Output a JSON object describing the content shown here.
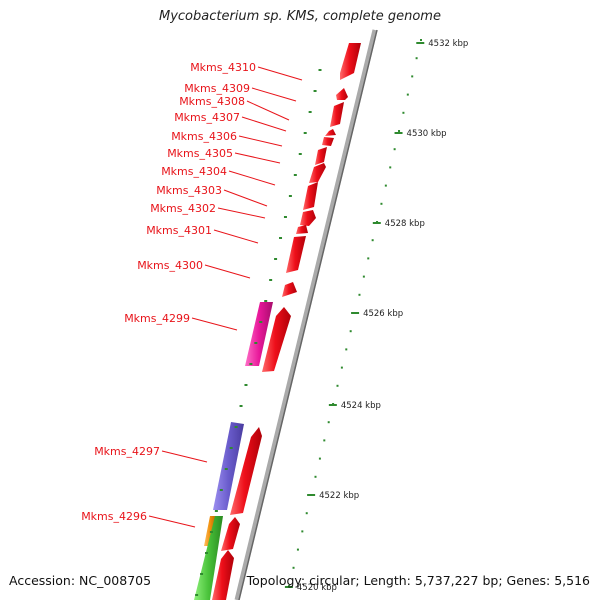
{
  "title": "Mycobacterium sp. KMS, complete genome",
  "footer": {
    "accession": "Accession: NC_008705",
    "topology": "Topology: circular; Length: 5,737,227 bp; Genes: 5,516"
  },
  "colors": {
    "forward_gene": "#ee0f1a",
    "pink_gene": "#e8189a",
    "purple_gene": "#6a5ccc",
    "orange_gene": "#f0900e",
    "green_gene": "#49c23a",
    "label": "#e8141a",
    "scale_tick": "#2f8a2f",
    "backbone": "#999999"
  },
  "scale_labels": [
    "4532 kbp",
    "4530 kbp",
    "4528 kbp",
    "4526 kbp",
    "4524 kbp",
    "4522 kbp",
    "4520 kbp"
  ],
  "gene_labels": [
    "Mkms_4310",
    "Mkms_4309",
    "Mkms_4308",
    "Mkms_4307",
    "Mkms_4306",
    "Mkms_4305",
    "Mkms_4304",
    "Mkms_4303",
    "Mkms_4302",
    "Mkms_4301",
    "Mkms_4300",
    "Mkms_4299",
    "Mkms_4297",
    "Mkms_4296"
  ]
}
